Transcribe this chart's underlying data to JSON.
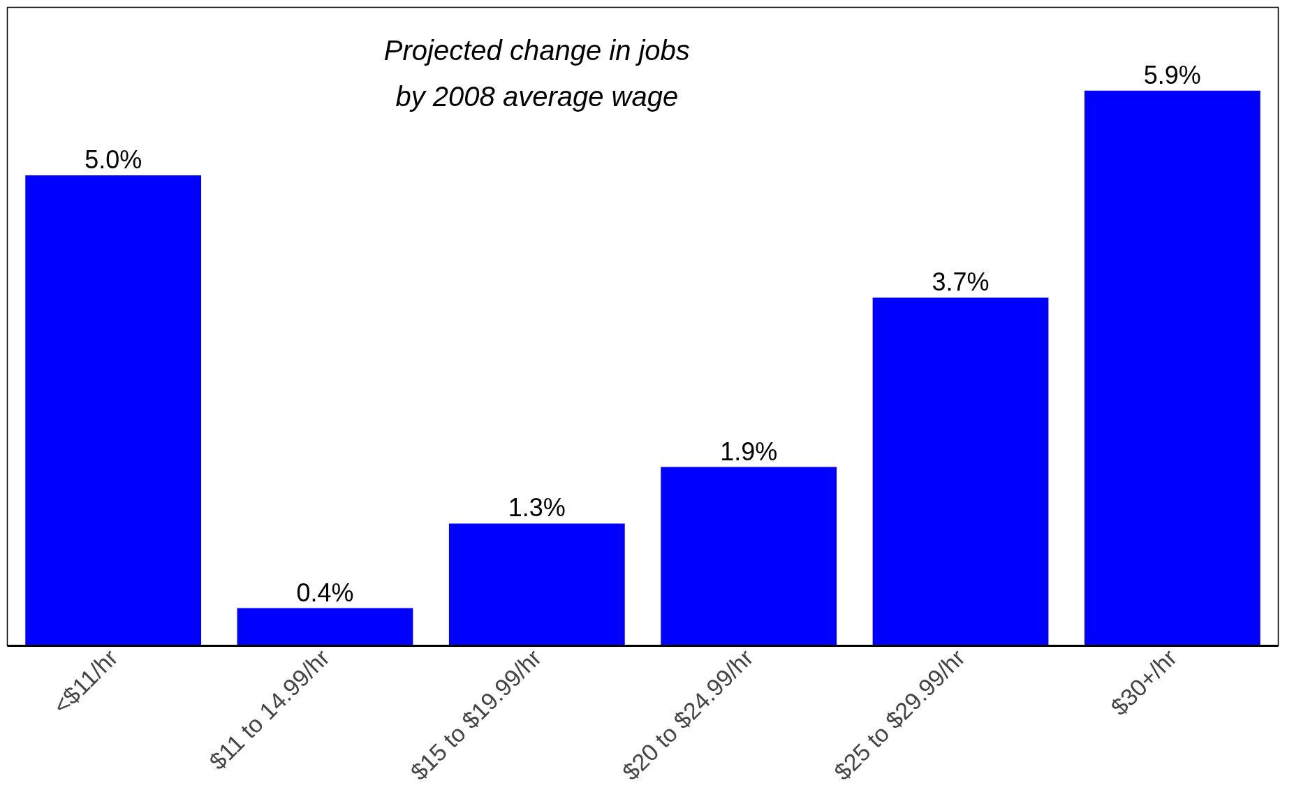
{
  "chart_data": {
    "type": "bar",
    "title": "Projected change in jobs\nby 2008 average wage",
    "categories": [
      "<$11/hr",
      "$11 to 14.99/hr",
      "$15 to $19.99/hr",
      "$20 to $24.99/hr",
      "$25 to $29.99/hr",
      "$30+/hr"
    ],
    "values": [
      5.0,
      0.4,
      1.3,
      1.9,
      3.7,
      5.9
    ],
    "value_labels": [
      "5.0%",
      "0.4%",
      "1.3%",
      "1.9%",
      "3.7%",
      "5.9%"
    ],
    "color": "#0000ff",
    "tick_labels": "x",
    "grid": false
  }
}
